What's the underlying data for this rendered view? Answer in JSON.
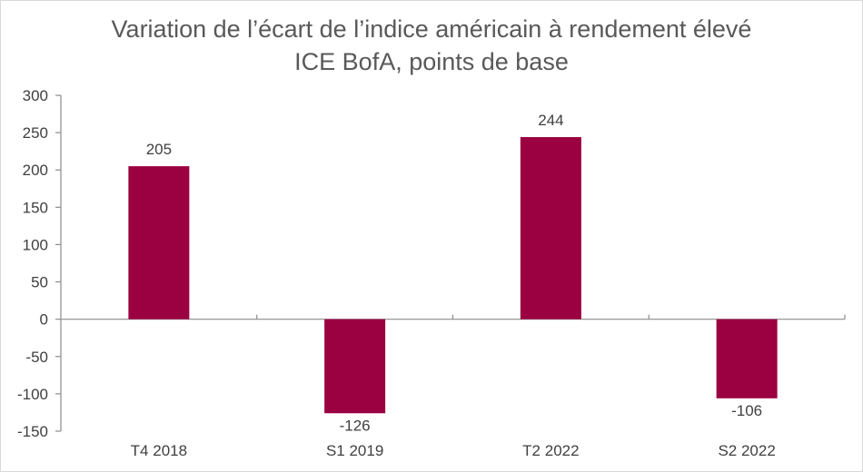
{
  "chart_data": {
    "type": "bar",
    "title": "Variation de l’écart de l’indice américain à rendement élevé",
    "subtitle": "ICE BofA, points de base",
    "xlabel": "",
    "ylabel": "",
    "categories": [
      "T4 2018",
      "S1 2019",
      "T2 2022",
      "S2 2022"
    ],
    "values": [
      205,
      -126,
      244,
      -106
    ],
    "data_labels": [
      "205",
      "-126",
      "244",
      "-106"
    ],
    "ylim": [
      -150,
      300
    ],
    "yticks": [
      300,
      250,
      200,
      150,
      100,
      50,
      0,
      -50,
      -100,
      -150
    ],
    "ytick_labels": [
      "300",
      "250",
      "200",
      "150",
      "100",
      "50",
      "0",
      "-50",
      "-100",
      "-150"
    ],
    "grid": false,
    "bar_color": "#9b0040"
  }
}
